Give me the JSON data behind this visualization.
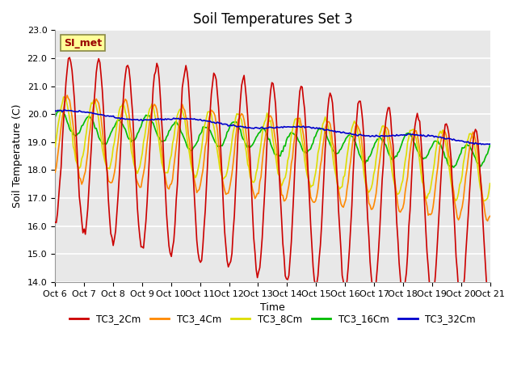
{
  "title": "Soil Temperatures Set 3",
  "xlabel": "Time",
  "ylabel": "Soil Temperature (C)",
  "ylim": [
    14.0,
    23.0
  ],
  "yticks": [
    14.0,
    15.0,
    16.0,
    17.0,
    18.0,
    19.0,
    20.0,
    21.0,
    22.0,
    23.0
  ],
  "xtick_labels": [
    "Oct 6",
    "Oct 7",
    "Oct 8",
    "Oct 9",
    "Oct 10",
    "Oct 11",
    "Oct 12",
    "Oct 13",
    "Oct 14",
    "Oct 15",
    "Oct 16",
    "Oct 17",
    "Oct 18",
    "Oct 19",
    "Oct 20",
    "Oct 21"
  ],
  "series": {
    "TC3_2Cm": {
      "color": "#CC0000",
      "lw": 1.2
    },
    "TC3_4Cm": {
      "color": "#FF8800",
      "lw": 1.2
    },
    "TC3_8Cm": {
      "color": "#DDDD00",
      "lw": 1.2
    },
    "TC3_16Cm": {
      "color": "#00BB00",
      "lw": 1.2
    },
    "TC3_32Cm": {
      "color": "#0000CC",
      "lw": 1.2
    }
  },
  "annotation_text": "SI_met",
  "annotation_bg": "#FFFF99",
  "annotation_border": "#888844",
  "plot_bg": "#E8E8E8",
  "grid_color": "#FFFFFF",
  "fig_bg": "#FFFFFF",
  "title_fontsize": 12,
  "label_fontsize": 9,
  "tick_fontsize": 8
}
